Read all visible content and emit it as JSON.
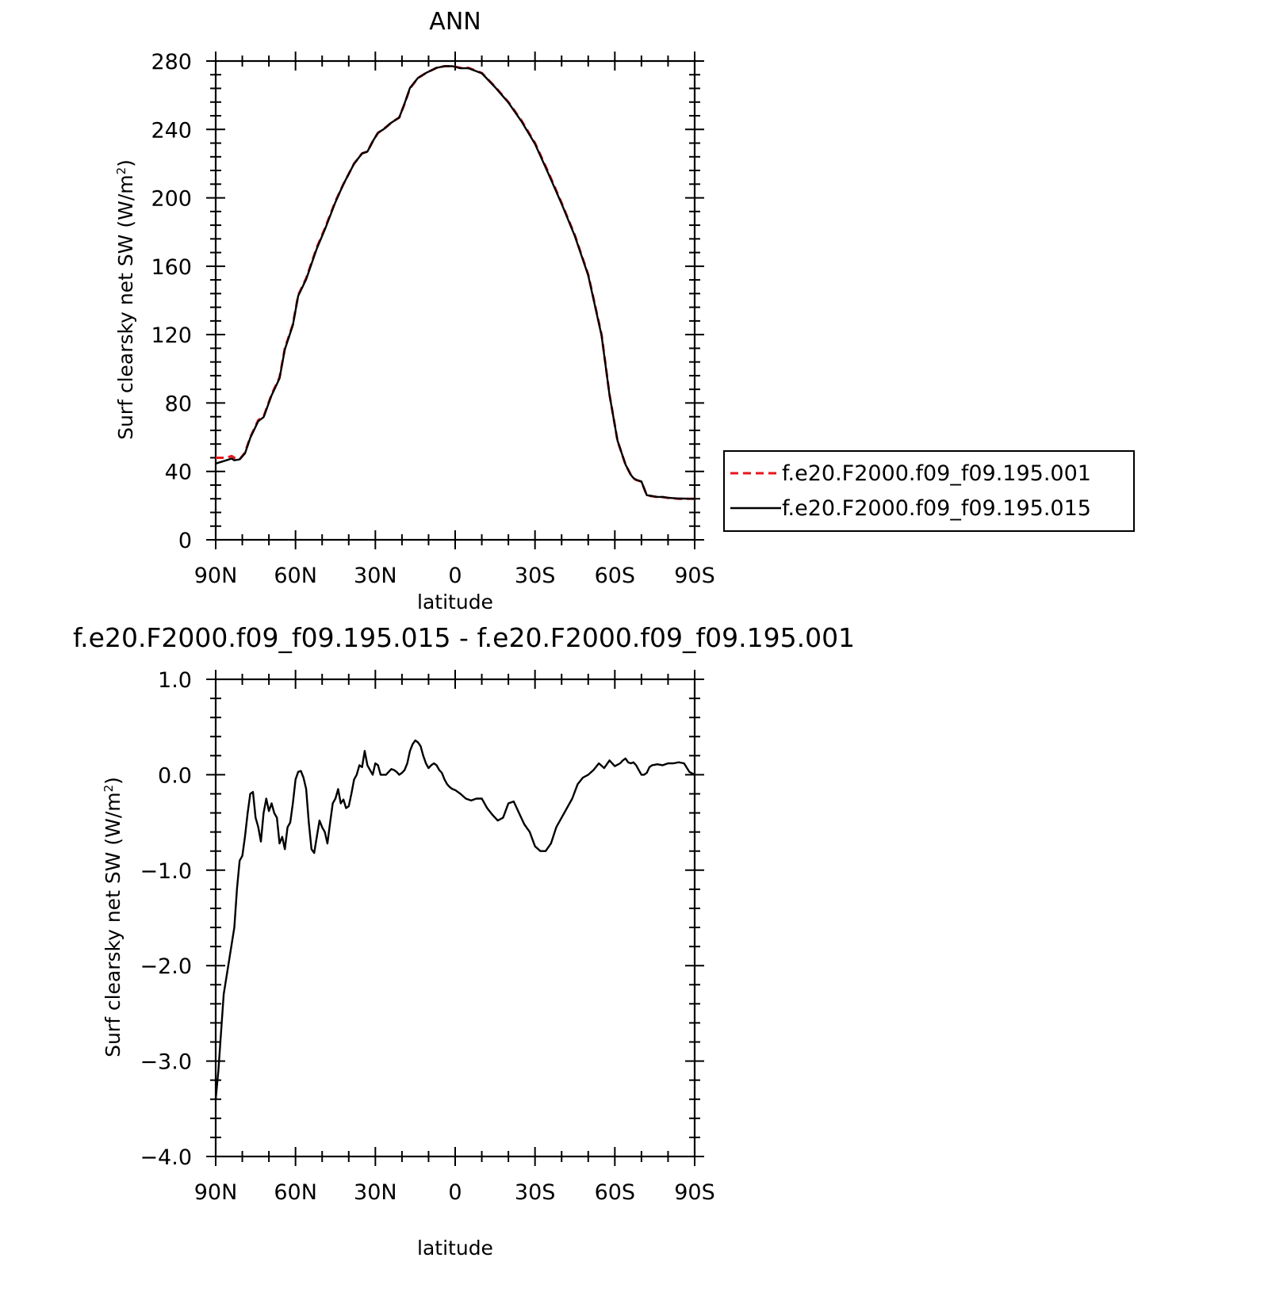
{
  "chart_data": [
    {
      "type": "line",
      "title": "ANN",
      "xlabel": "latitude",
      "ylabel_main": "Surf clearsky net SW (W/m",
      "ylabel_sup": "2",
      "ylabel_close": ")",
      "xlim": [
        90,
        -90
      ],
      "ylim": [
        0,
        280
      ],
      "xticks": [
        90,
        60,
        30,
        0,
        -30,
        -60,
        -90
      ],
      "xtick_labels": [
        "90N",
        "60N",
        "30N",
        "0",
        "30S",
        "60S",
        "90S"
      ],
      "yticks": [
        0,
        40,
        80,
        120,
        160,
        200,
        240,
        280
      ],
      "ytick_labels": [
        "0",
        "40",
        "80",
        "120",
        "160",
        "200",
        "240",
        "280"
      ],
      "grid": false,
      "legend_position": "right",
      "series": [
        {
          "name": "f.e20.F2000.f09_f09.195.001",
          "color": "#e8141c",
          "dash": "dashed",
          "x": [
            90,
            86,
            84,
            83,
            81,
            79,
            77,
            74,
            72,
            69,
            66,
            64,
            61,
            59,
            56,
            52,
            49,
            45,
            42,
            38,
            35,
            33,
            31,
            29,
            27,
            24,
            21,
            19,
            17,
            14,
            11,
            7,
            4,
            1,
            -2,
            -5,
            -10,
            -15,
            -20,
            -25,
            -30,
            -35,
            -40,
            -45,
            -50,
            -55,
            -58,
            -61,
            -64,
            -66,
            -67,
            -68,
            -70,
            -72,
            -74,
            -76,
            -78,
            -80,
            -84,
            -86,
            -88,
            -90
          ],
          "y": [
            48,
            48,
            49,
            48,
            47,
            51,
            60,
            70,
            72,
            85,
            95,
            112,
            126,
            143,
            153,
            171,
            182,
            198,
            208,
            220,
            226,
            227,
            233,
            238,
            240,
            244,
            247,
            255,
            264,
            270,
            273,
            276,
            277,
            277,
            276,
            276,
            273,
            265,
            256,
            245,
            232,
            215,
            197,
            178,
            155,
            120,
            85,
            58,
            44,
            38,
            36,
            35,
            34,
            26,
            25.5,
            25,
            25,
            24.5,
            24,
            24,
            24,
            24
          ]
        },
        {
          "name": "f.e20.F2000.f09_f09.195.015",
          "color": "#000000",
          "dash": "solid",
          "x": [
            90,
            86,
            84,
            83,
            81,
            79,
            77,
            74,
            72,
            69,
            66,
            64,
            61,
            59,
            56,
            52,
            49,
            45,
            42,
            38,
            35,
            33,
            31,
            29,
            27,
            24,
            21,
            19,
            17,
            14,
            11,
            7,
            4,
            1,
            -2,
            -5,
            -10,
            -15,
            -20,
            -25,
            -30,
            -35,
            -40,
            -45,
            -50,
            -55,
            -58,
            -61,
            -64,
            -66,
            -67,
            -68,
            -70,
            -72,
            -74,
            -76,
            -78,
            -80,
            -84,
            -86,
            -88,
            -90
          ],
          "y": [
            44.6,
            46.5,
            47.5,
            46.5,
            47,
            50.5,
            59.6,
            69.4,
            71.7,
            84.5,
            94.4,
            111.4,
            125.5,
            142.6,
            152.4,
            170.3,
            181.4,
            197.5,
            208,
            219.9,
            226,
            227,
            233,
            238.1,
            240,
            244,
            247,
            255.2,
            264.3,
            270.1,
            273,
            276,
            277,
            277,
            275.8,
            275.8,
            272.8,
            264.7,
            255.7,
            244.5,
            231.5,
            214.3,
            196.5,
            177.5,
            154.6,
            119.4,
            84.8,
            58,
            44,
            38,
            36.1,
            35.1,
            34.1,
            26.1,
            25.6,
            25.1,
            25.1,
            24.6,
            24.1,
            24.1,
            24,
            24
          ]
        }
      ]
    },
    {
      "type": "line",
      "title": "f.e20.F2000.f09_f09.195.015 - f.e20.F2000.f09_f09.195.001",
      "xlabel": "latitude",
      "ylabel_main": "Surf clearsky net SW (W/m",
      "ylabel_sup": "2",
      "ylabel_close": ")",
      "xlim": [
        90,
        -90
      ],
      "ylim": [
        -4.0,
        1.0
      ],
      "xticks": [
        90,
        60,
        30,
        0,
        -30,
        -60,
        -90
      ],
      "xtick_labels": [
        "90N",
        "60N",
        "30N",
        "0",
        "30S",
        "60S",
        "90S"
      ],
      "yticks": [
        1.0,
        0.0,
        -1.0,
        -2.0,
        -3.0,
        -4.0
      ],
      "ytick_labels": [
        "1.0",
        "0.0",
        "−1.0",
        "−2.0",
        "−3.0",
        "−4.0"
      ],
      "grid": false,
      "series": [
        {
          "color": "#000000",
          "dash": "solid",
          "x": [
            90,
            89,
            87,
            85,
            83,
            82,
            81,
            80,
            79,
            78,
            77,
            76,
            75,
            74,
            73,
            72,
            71,
            70,
            69,
            68,
            67,
            66,
            65,
            64,
            63,
            62,
            61,
            60,
            59,
            58,
            57,
            56,
            55,
            54,
            53,
            52,
            51,
            50,
            49,
            48,
            47,
            46,
            45,
            44,
            43,
            42,
            41,
            40,
            39,
            38,
            37,
            36,
            35,
            34,
            33,
            32,
            31,
            30,
            29,
            28,
            27,
            26,
            25,
            24,
            23,
            22,
            21,
            20,
            19,
            18,
            17,
            16,
            15,
            14,
            13,
            12,
            11,
            10,
            9,
            8,
            7,
            6,
            5,
            4,
            3,
            2,
            1,
            0,
            -2,
            -4,
            -6,
            -8,
            -10,
            -12,
            -14,
            -16,
            -18,
            -20,
            -22,
            -24,
            -26,
            -28,
            -30,
            -32,
            -34,
            -36,
            -38,
            -40,
            -42,
            -44,
            -46,
            -48,
            -50,
            -52,
            -54,
            -56,
            -58,
            -60,
            -62,
            -63,
            -64,
            -65,
            -66,
            -67,
            -68,
            -69,
            -70,
            -71,
            -72,
            -73,
            -74,
            -76,
            -78,
            -80,
            -82,
            -84,
            -86,
            -88,
            -90
          ],
          "y": [
            -3.4,
            -3.1,
            -2.3,
            -1.95,
            -1.6,
            -1.2,
            -0.9,
            -0.85,
            -0.65,
            -0.4,
            -0.2,
            -0.18,
            -0.45,
            -0.55,
            -0.7,
            -0.4,
            -0.25,
            -0.38,
            -0.3,
            -0.4,
            -0.45,
            -0.72,
            -0.65,
            -0.78,
            -0.55,
            -0.5,
            -0.3,
            -0.05,
            0.03,
            0.04,
            -0.03,
            -0.15,
            -0.5,
            -0.78,
            -0.82,
            -0.65,
            -0.48,
            -0.55,
            -0.6,
            -0.72,
            -0.5,
            -0.3,
            -0.25,
            -0.15,
            -0.3,
            -0.26,
            -0.35,
            -0.33,
            -0.2,
            -0.05,
            0.0,
            0.1,
            0.08,
            0.25,
            0.1,
            0.05,
            0.0,
            0.12,
            0.1,
            0.0,
            0.0,
            0.0,
            0.03,
            0.06,
            0.05,
            0.03,
            0.0,
            0.02,
            0.05,
            0.12,
            0.25,
            0.32,
            0.36,
            0.34,
            0.3,
            0.2,
            0.12,
            0.07,
            0.1,
            0.12,
            0.1,
            0.05,
            0.02,
            -0.05,
            -0.1,
            -0.13,
            -0.15,
            -0.16,
            -0.2,
            -0.25,
            -0.27,
            -0.25,
            -0.25,
            -0.35,
            -0.42,
            -0.48,
            -0.45,
            -0.3,
            -0.28,
            -0.4,
            -0.52,
            -0.6,
            -0.75,
            -0.8,
            -0.8,
            -0.72,
            -0.55,
            -0.45,
            -0.35,
            -0.25,
            -0.1,
            -0.03,
            0.0,
            0.05,
            0.12,
            0.07,
            0.15,
            0.09,
            0.12,
            0.15,
            0.17,
            0.13,
            0.12,
            0.13,
            0.1,
            0.05,
            0.0,
            0.0,
            0.02,
            0.08,
            0.1,
            0.11,
            0.1,
            0.12,
            0.12,
            0.13,
            0.12,
            0.03,
            0.0
          ]
        }
      ]
    }
  ]
}
